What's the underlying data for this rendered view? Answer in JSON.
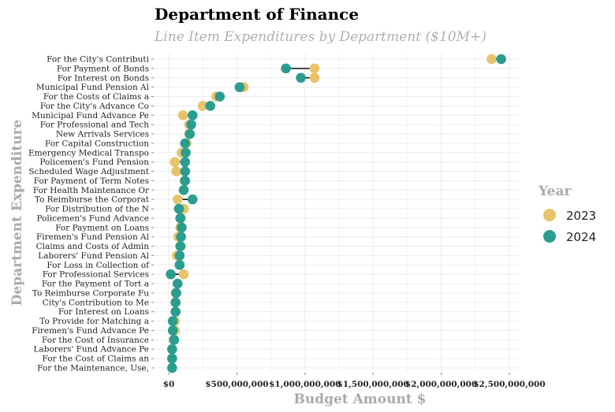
{
  "chart_data": {
    "type": "dumbbell",
    "title": "Department of Finance",
    "subtitle": "Line Item Expenditures by Department ($10M+)",
    "xlabel": "Budget Amount $",
    "ylabel": "Department Expenditure",
    "xlim": [
      0,
      2500000000
    ],
    "x_ticks": [
      0,
      500000000,
      1000000000,
      1500000000,
      2000000000,
      2500000000
    ],
    "x_tick_labels": [
      "$0",
      "$500,000,000",
      "$1,000,000,000",
      "$1,500,000,000",
      "$2,000,000,000",
      "$2,500,000,000"
    ],
    "grid": true,
    "legend": {
      "title": "Year",
      "position": "right"
    },
    "colors": {
      "2023": "#e8c36a",
      "2024": "#2a9d8f",
      "connector": "#111111",
      "grid": "#ebebeb"
    },
    "series_names": [
      "2023",
      "2024"
    ],
    "categories": [
      "For the City's Contributi",
      "For Payment of Bonds",
      "For Interest on Bonds",
      "Municipal Fund Pension Al",
      "For the Costs of Claims a",
      "For the City's Advance Co",
      "Municipal Fund Advance Pe",
      "For Professional and Tech",
      "New Arrivals Services",
      "For Capital Construction",
      "Emergency Medical Transpo",
      "Policemen's Fund Pension",
      "Scheduled Wage Adjustment",
      "For Payment of Term Notes",
      "For Health Maintenance Or",
      "To Reimburse the Corporat",
      "For Distribution of the N",
      "Policemen's Fund Advance",
      "For Payment on Loans",
      "Firemen's Fund Pension Al",
      "Claims and Costs of Admin",
      "Laborers' Fund Pension Al",
      "For Loss in Collection of",
      "For Professional Services",
      "For the Payment of Tort a",
      "To Reimburse Corporate Fu",
      "City's Contribution to Me",
      "For Interest on Loans",
      "To Provide for Matching a",
      "Firemen's Fund Advance Pe",
      "For the Cost of Insurance",
      "Laborers' Fund Advance Pe",
      "For the Cost of Claims an",
      "For the Maintenance, Use,"
    ],
    "values_2023": [
      2370000000,
      1070000000,
      1070000000,
      550000000,
      350000000,
      250000000,
      105000000,
      150000000,
      150000000,
      130000000,
      95000000,
      45000000,
      55000000,
      115000000,
      110000000,
      65000000,
      110000000,
      90000000,
      85000000,
      70000000,
      90000000,
      60000000,
      80000000,
      110000000,
      65000000,
      50000000,
      50000000,
      50000000,
      45000000,
      45000000,
      35000000,
      25000000,
      25000000,
      25000000
    ],
    "values_2024": [
      2440000000,
      860000000,
      970000000,
      520000000,
      375000000,
      305000000,
      175000000,
      165000000,
      155000000,
      120000000,
      125000000,
      120000000,
      120000000,
      120000000,
      110000000,
      175000000,
      75000000,
      85000000,
      95000000,
      90000000,
      85000000,
      80000000,
      80000000,
      15000000,
      65000000,
      55000000,
      50000000,
      50000000,
      30000000,
      30000000,
      40000000,
      25000000,
      25000000,
      25000000
    ]
  }
}
